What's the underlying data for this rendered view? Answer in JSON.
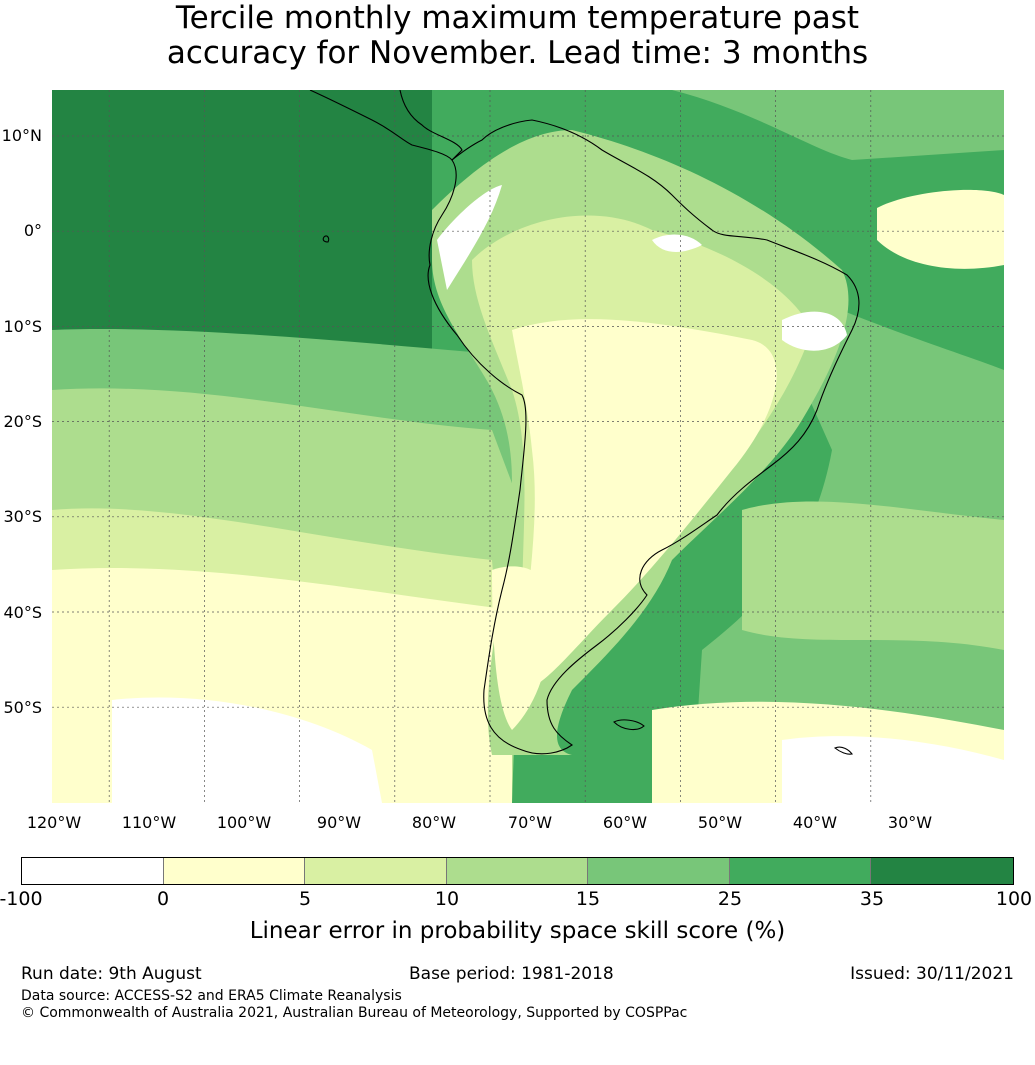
{
  "title_line1": "Tercile monthly maximum temperature past",
  "title_line2": "accuracy for November. Lead time: 3 months",
  "map": {
    "lat_labels": [
      "10°N",
      "0°",
      "10°S",
      "20°S",
      "30°S",
      "40°S",
      "50°S"
    ],
    "lon_labels": [
      "120°W",
      "110°W",
      "100°W",
      "90°W",
      "80°W",
      "70°W",
      "60°W",
      "50°W",
      "40°W",
      "30°W"
    ],
    "palette": {
      "-100_0": "#ffffff",
      "0_5": "#ffffcc",
      "5_10": "#d9f0a3",
      "10_15": "#addd8e",
      "15_25": "#78c679",
      "25_35": "#41ab5d",
      "35_100": "#238443"
    },
    "coastline_color": "#000000",
    "gridline_color": "#555555"
  },
  "colorbar": {
    "segment_colors": [
      "#ffffff",
      "#ffffcc",
      "#d9f0a3",
      "#addd8e",
      "#78c679",
      "#41ab5d",
      "#238443"
    ],
    "tick_labels": [
      "-100",
      "0",
      "5",
      "10",
      "15",
      "25",
      "35",
      "100"
    ],
    "label": "Linear error in probability space skill score (%)"
  },
  "footer": {
    "run_date": "Run date: 9th August",
    "base_period": "Base period: 1981-2018",
    "issued": "Issued: 30/11/2021",
    "data_source": "Data source: ACCESS-S2 and ERA5 Climate Reanalysis",
    "copyright": "© Commonwealth of Australia 2021, Australian Bureau of Meteorology, Supported by COSPPac"
  }
}
